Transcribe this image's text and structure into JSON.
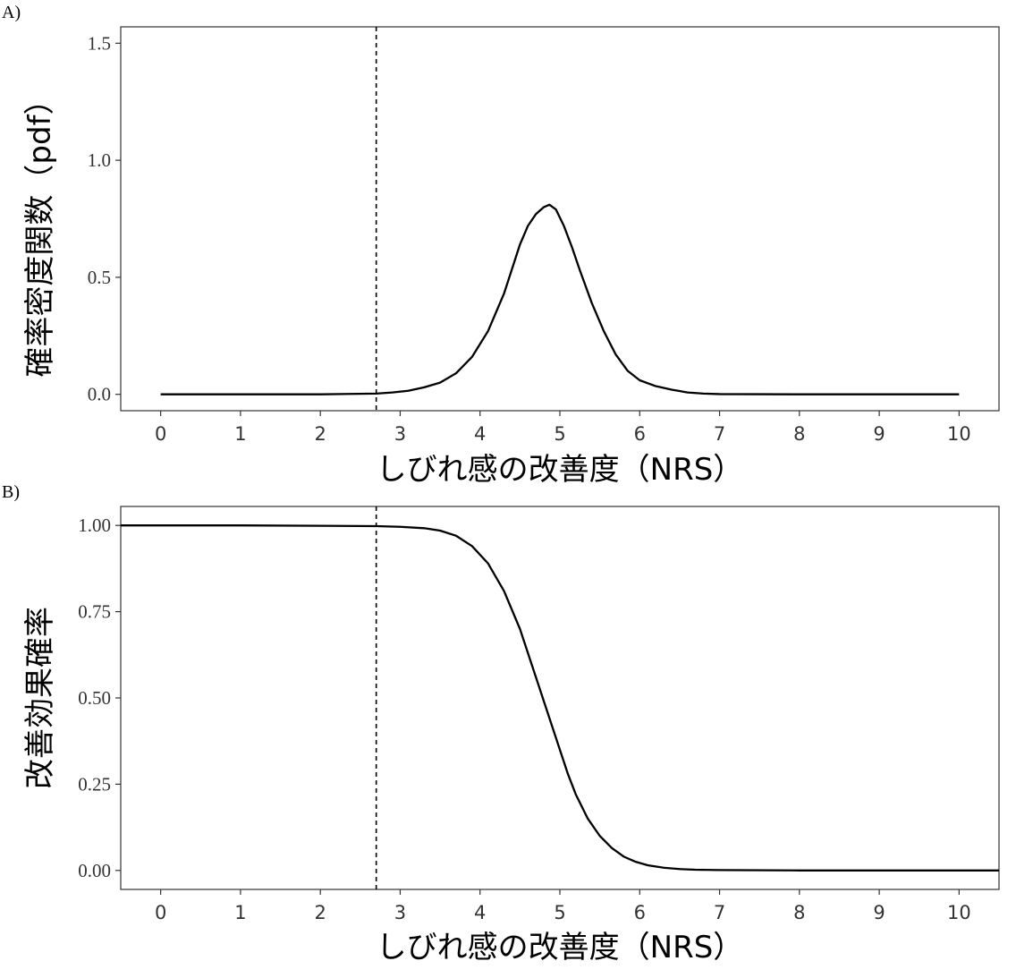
{
  "chart_data": [
    {
      "panel_label": "A)",
      "type": "line",
      "xlabel": "しびれ感の改善度（NRS）",
      "ylabel": "確率密度関数（pdf）",
      "xlim": [
        -0.5,
        10.5
      ],
      "ylim": [
        -0.07,
        1.57
      ],
      "x_ticks": [
        0,
        1,
        2,
        3,
        4,
        5,
        6,
        7,
        8,
        9,
        10
      ],
      "y_ticks": [
        0.0,
        0.5,
        1.0,
        1.5
      ],
      "y_tick_labels": [
        "0.0",
        "0.5",
        "1.0",
        "1.5"
      ],
      "grid": false,
      "reference_line_x": 2.7,
      "series": [
        {
          "x": [
            0,
            1,
            2,
            2.7,
            2.9,
            3.1,
            3.3,
            3.5,
            3.7,
            3.9,
            4.1,
            4.3,
            4.5,
            4.6,
            4.7,
            4.8,
            4.87,
            4.95,
            5.05,
            5.15,
            5.25,
            5.4,
            5.55,
            5.7,
            5.85,
            6.0,
            6.2,
            6.4,
            6.6,
            6.8,
            7,
            8,
            9,
            10
          ],
          "y": [
            0,
            0,
            0,
            0.003,
            0.008,
            0.015,
            0.03,
            0.05,
            0.09,
            0.16,
            0.27,
            0.43,
            0.64,
            0.72,
            0.77,
            0.8,
            0.81,
            0.79,
            0.72,
            0.63,
            0.53,
            0.39,
            0.27,
            0.17,
            0.1,
            0.06,
            0.035,
            0.02,
            0.008,
            0.003,
            0.001,
            0,
            0,
            0
          ]
        }
      ]
    },
    {
      "panel_label": "B)",
      "type": "line",
      "xlabel": "しびれ感の改善度（NRS）",
      "ylabel": "改善効果確率",
      "xlim": [
        -0.5,
        10.5
      ],
      "ylim": [
        -0.055,
        1.055
      ],
      "x_ticks": [
        0,
        1,
        2,
        3,
        4,
        5,
        6,
        7,
        8,
        9,
        10
      ],
      "y_ticks": [
        0.0,
        0.25,
        0.5,
        0.75,
        1.0
      ],
      "y_tick_labels": [
        "0.00",
        "0.25",
        "0.50",
        "0.75",
        "1.00"
      ],
      "grid": false,
      "reference_line_x": 2.7,
      "series": [
        {
          "x": [
            -0.5,
            0,
            1,
            2,
            2.7,
            3.0,
            3.3,
            3.5,
            3.7,
            3.9,
            4.1,
            4.3,
            4.5,
            4.6,
            4.7,
            4.8,
            4.9,
            5.0,
            5.1,
            5.2,
            5.35,
            5.5,
            5.65,
            5.8,
            5.95,
            6.1,
            6.3,
            6.5,
            6.7,
            7,
            8,
            9,
            10,
            10.5
          ],
          "y": [
            1.0,
            1.0,
            1.0,
            0.999,
            0.998,
            0.996,
            0.992,
            0.985,
            0.97,
            0.94,
            0.89,
            0.81,
            0.7,
            0.63,
            0.56,
            0.49,
            0.42,
            0.35,
            0.28,
            0.22,
            0.15,
            0.1,
            0.065,
            0.04,
            0.025,
            0.015,
            0.008,
            0.004,
            0.002,
            0.001,
            0.0,
            0.0,
            0.0,
            0.0
          ]
        }
      ]
    }
  ]
}
